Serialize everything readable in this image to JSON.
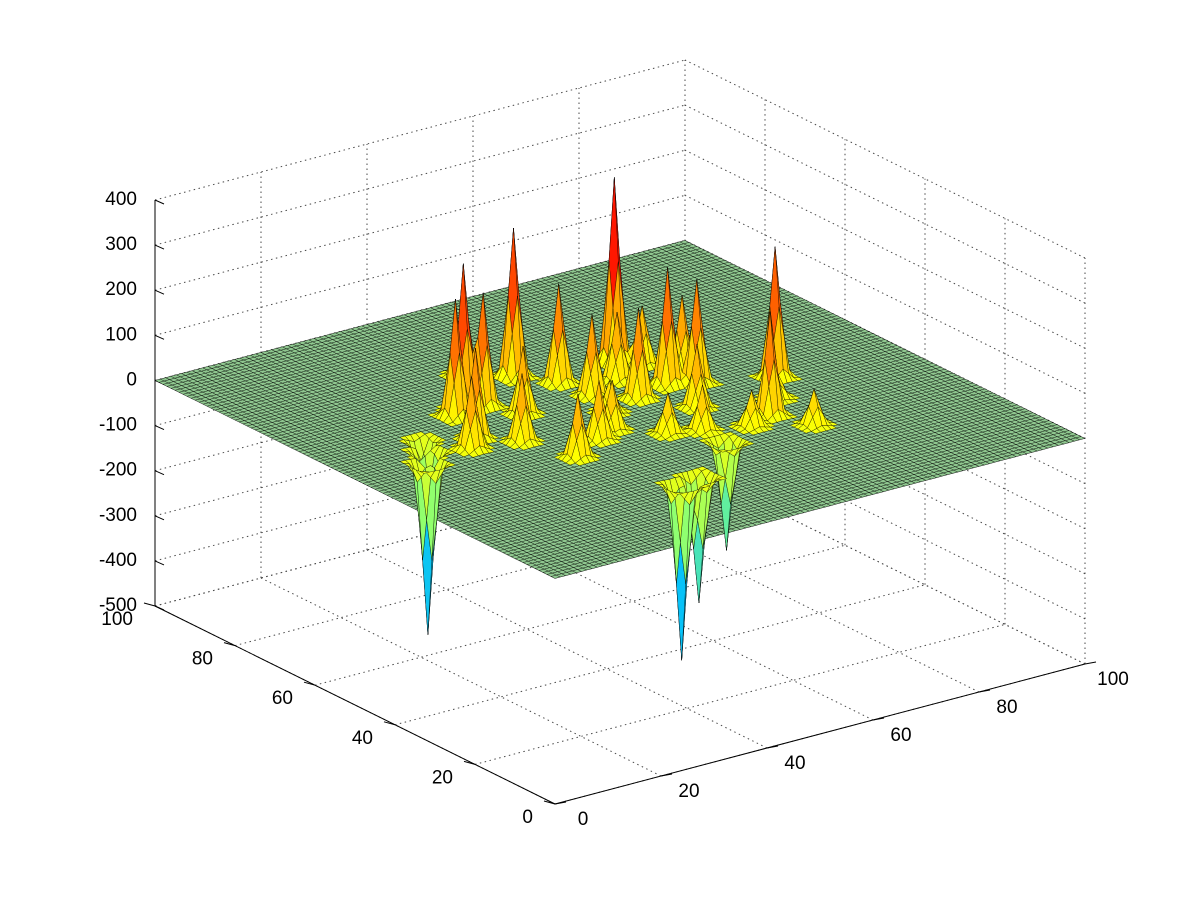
{
  "chart_data": {
    "type": "surface",
    "title": "",
    "xlabel": "",
    "ylabel": "",
    "zlabel": "",
    "xlim": [
      0,
      100
    ],
    "ylim": [
      0,
      100
    ],
    "zlim": [
      -500,
      400
    ],
    "grid": true,
    "colormap": "jet",
    "colormap_colors": [
      "#00008f",
      "#0000ff",
      "#00bfff",
      "#7fff7f",
      "#ffff00",
      "#ff8000",
      "#ff0000",
      "#800000"
    ],
    "base_plane_z": 0,
    "base_plane_color": "#8fc78f",
    "x_ticks": [
      "0",
      "20",
      "40",
      "60",
      "80",
      "100"
    ],
    "x_tick_values": [
      0,
      20,
      40,
      60,
      80,
      100
    ],
    "y_ticks": [
      "0",
      "20",
      "40",
      "60",
      "80",
      "100"
    ],
    "y_tick_values": [
      0,
      20,
      40,
      60,
      80,
      100
    ],
    "z_ticks": [
      "-500",
      "-400",
      "-300",
      "-200",
      "-100",
      "0",
      "100",
      "200",
      "300",
      "400"
    ],
    "z_tick_values": [
      -500,
      -400,
      -300,
      -200,
      -100,
      0,
      100,
      200,
      300,
      400
    ],
    "peaks": [
      {
        "x": 28,
        "y": 62,
        "z": 260
      },
      {
        "x": 31,
        "y": 64,
        "z": 320
      },
      {
        "x": 34,
        "y": 63,
        "z": 250
      },
      {
        "x": 22,
        "y": 50,
        "z": 160
      },
      {
        "x": 25,
        "y": 53,
        "z": 200
      },
      {
        "x": 30,
        "y": 48,
        "z": 150
      },
      {
        "x": 37,
        "y": 57,
        "z": 150
      },
      {
        "x": 45,
        "y": 70,
        "z": 330
      },
      {
        "x": 49,
        "y": 64,
        "z": 220
      },
      {
        "x": 50,
        "y": 57,
        "z": 180
      },
      {
        "x": 55,
        "y": 52,
        "z": 200
      },
      {
        "x": 57,
        "y": 60,
        "z": 150
      },
      {
        "x": 61,
        "y": 66,
        "z": 410
      },
      {
        "x": 60,
        "y": 44,
        "z": 140
      },
      {
        "x": 62,
        "y": 54,
        "z": 260
      },
      {
        "x": 66,
        "y": 52,
        "z": 230
      },
      {
        "x": 67,
        "y": 57,
        "z": 170
      },
      {
        "x": 64,
        "y": 63,
        "z": 130
      },
      {
        "x": 33,
        "y": 38,
        "z": 140
      },
      {
        "x": 40,
        "y": 42,
        "z": 130
      },
      {
        "x": 44,
        "y": 44,
        "z": 110
      },
      {
        "x": 50,
        "y": 38,
        "z": 90
      },
      {
        "x": 55,
        "y": 36,
        "z": 100
      },
      {
        "x": 62,
        "y": 33,
        "z": 80
      },
      {
        "x": 67,
        "y": 35,
        "z": 230
      },
      {
        "x": 77,
        "y": 47,
        "z": 290
      },
      {
        "x": 72,
        "y": 40,
        "z": 60
      },
      {
        "x": 39,
        "y": 75,
        "z": 90
      },
      {
        "x": 70,
        "y": 28,
        "z": 80
      },
      {
        "x": 48,
        "y": 50,
        "z": 70
      },
      {
        "x": 13,
        "y": 49,
        "z": -380
      },
      {
        "x": 16,
        "y": 53,
        "z": -320
      },
      {
        "x": 18,
        "y": 57,
        "z": -120
      },
      {
        "x": 39,
        "y": 20,
        "z": -390
      },
      {
        "x": 43,
        "y": 21,
        "z": -280
      },
      {
        "x": 55,
        "y": 30,
        "z": -240
      }
    ]
  }
}
